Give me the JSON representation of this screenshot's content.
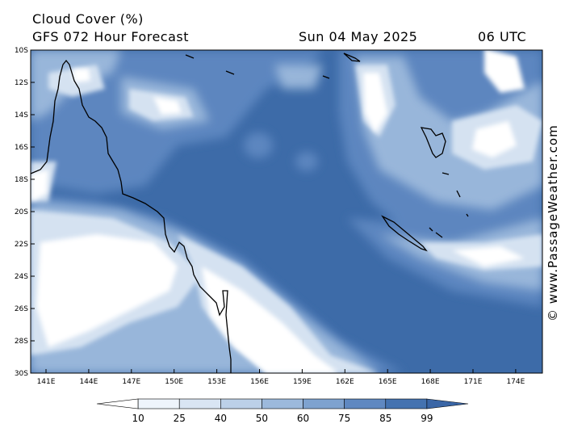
{
  "header": {
    "title": "Cloud Cover (%)",
    "subtitle": "GFS 072 Hour Forecast",
    "date": "Sun 04 May 2025",
    "time": "06 UTC"
  },
  "credit": "© www.PassageWeather.com",
  "map": {
    "lat_labels": [
      "10S",
      "12S",
      "14S",
      "16S",
      "18S",
      "20S",
      "22S",
      "24S",
      "26S",
      "28S",
      "30S"
    ],
    "lon_labels": [
      "141E",
      "144E",
      "147E",
      "150E",
      "153E",
      "156E",
      "159E",
      "162E",
      "165E",
      "168E",
      "171E",
      "174E"
    ],
    "colors": {
      "ocean_dark": "#3d6ba8",
      "mid": "#5a86bd",
      "light": "#8eb1d9",
      "pale": "#c9dbee",
      "white": "#ffffff",
      "coast": "#000000"
    }
  },
  "colorbar": {
    "ticks": [
      "10",
      "25",
      "40",
      "50",
      "60",
      "75",
      "85",
      "99"
    ],
    "colors": [
      "#ffffff",
      "#eef4fb",
      "#d9e5f3",
      "#bcd0e8",
      "#9cb9dc",
      "#7ea2cf",
      "#5f88c1",
      "#4472b0",
      "#3a66a6"
    ]
  }
}
